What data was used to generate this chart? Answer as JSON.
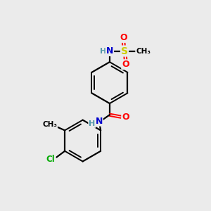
{
  "background_color": "#ebebeb",
  "bond_color": "#000000",
  "atom_colors": {
    "N": "#0000cc",
    "O": "#ff0000",
    "S": "#cccc00",
    "Cl": "#00aa00",
    "C": "#000000",
    "H": "#5599aa"
  },
  "figsize": [
    3.0,
    3.0
  ],
  "dpi": 100,
  "xlim": [
    0,
    10
  ],
  "ylim": [
    0,
    10
  ]
}
